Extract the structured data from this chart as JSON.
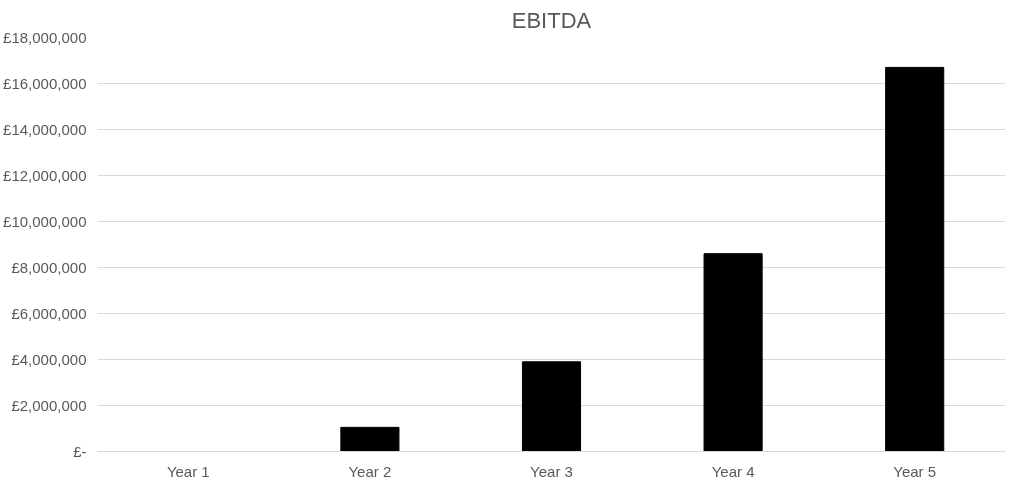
{
  "chart_data": {
    "type": "bar",
    "title": "EBITDA",
    "categories": [
      "Year 1",
      "Year 2",
      "Year 3",
      "Year 4",
      "Year 5"
    ],
    "values": [
      0,
      1050000,
      3900000,
      8600000,
      16700000
    ],
    "color": "#000000",
    "ylim": [
      0,
      18000000
    ],
    "yticks": [
      {
        "value": 0,
        "label": "£-"
      },
      {
        "value": 2000000,
        "label": "£2,000,000"
      },
      {
        "value": 4000000,
        "label": "£4,000,000"
      },
      {
        "value": 6000000,
        "label": "£6,000,000"
      },
      {
        "value": 8000000,
        "label": "£8,000,000"
      },
      {
        "value": 10000000,
        "label": "£10,000,000"
      },
      {
        "value": 12000000,
        "label": "£12,000,000"
      },
      {
        "value": 14000000,
        "label": "£14,000,000"
      },
      {
        "value": 16000000,
        "label": "£16,000,000"
      },
      {
        "value": 18000000,
        "label": "£18,000,000"
      }
    ],
    "grid": "y"
  }
}
